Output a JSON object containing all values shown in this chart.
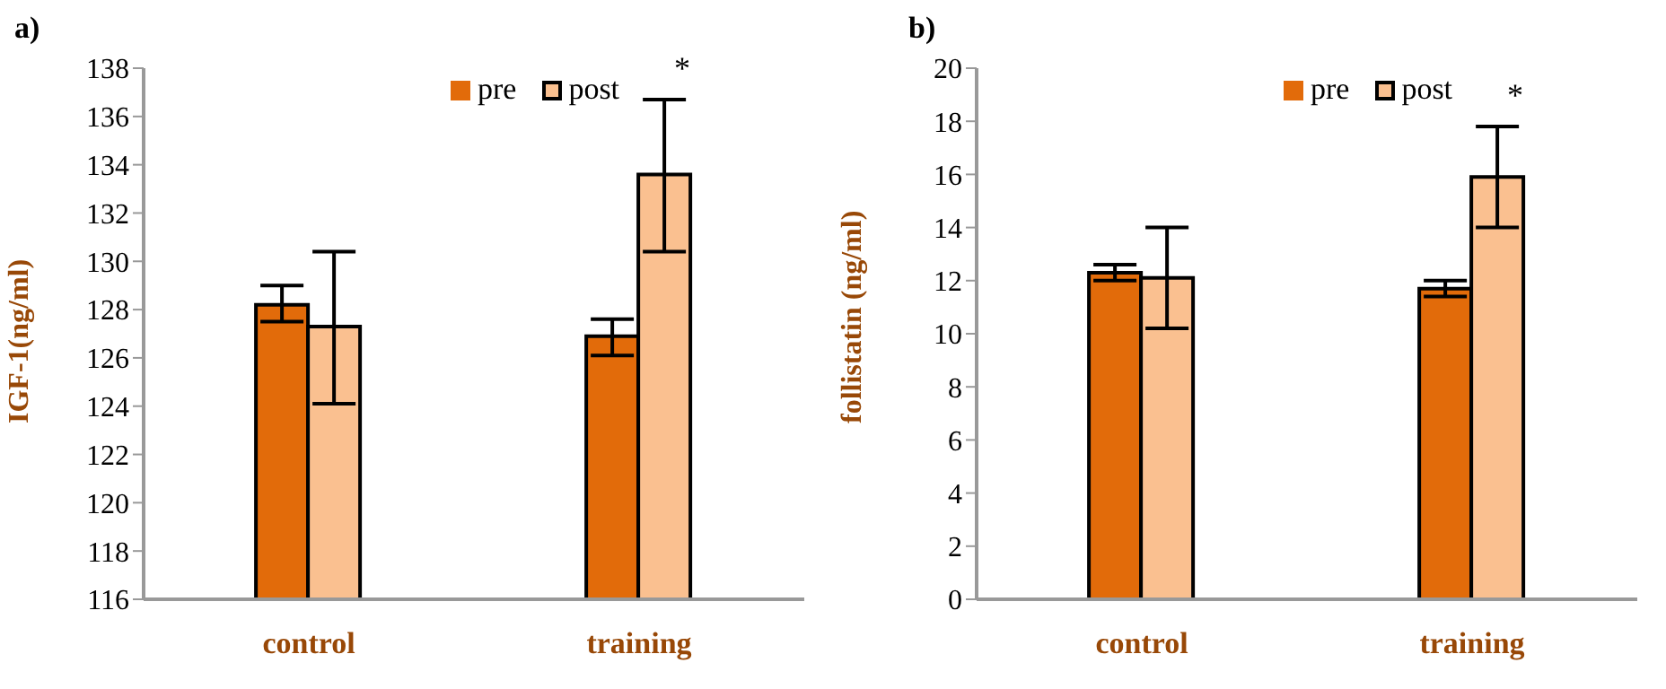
{
  "chart_data": [
    {
      "type": "bar",
      "title": "a)",
      "ylabel": "IGF-1(ng/ml)",
      "categories": [
        "control",
        "training"
      ],
      "series": [
        {
          "name": "pre",
          "color": "#e26b0a",
          "values": [
            128.2,
            126.9
          ],
          "errors": [
            [
              127.5,
              129.0
            ],
            [
              126.1,
              127.6
            ]
          ]
        },
        {
          "name": "post",
          "color": "#fac090",
          "values": [
            127.3,
            133.6
          ],
          "errors": [
            [
              124.1,
              130.4
            ],
            [
              130.4,
              136.7
            ]
          ]
        }
      ],
      "ylim": [
        116,
        138
      ],
      "yticks": [
        116,
        118,
        120,
        122,
        124,
        126,
        128,
        130,
        132,
        134,
        136,
        138
      ],
      "grid": false,
      "legend": "top",
      "annotations": [
        "*"
      ]
    },
    {
      "type": "bar",
      "title": "b)",
      "ylabel": "follistatin (ng/ml)",
      "categories": [
        "control",
        "training"
      ],
      "series": [
        {
          "name": "pre",
          "color": "#e26b0a",
          "values": [
            12.3,
            11.7
          ],
          "errors": [
            [
              12.0,
              12.6
            ],
            [
              11.4,
              12.0
            ]
          ]
        },
        {
          "name": "post",
          "color": "#fac090",
          "values": [
            12.1,
            15.9
          ],
          "errors": [
            [
              10.2,
              14.0
            ],
            [
              14.0,
              17.8
            ]
          ]
        }
      ],
      "ylim": [
        0,
        20
      ],
      "yticks": [
        0,
        2,
        4,
        6,
        8,
        10,
        12,
        14,
        16,
        18,
        20
      ],
      "grid": false,
      "legend": "top",
      "annotations": [
        "*"
      ]
    }
  ]
}
